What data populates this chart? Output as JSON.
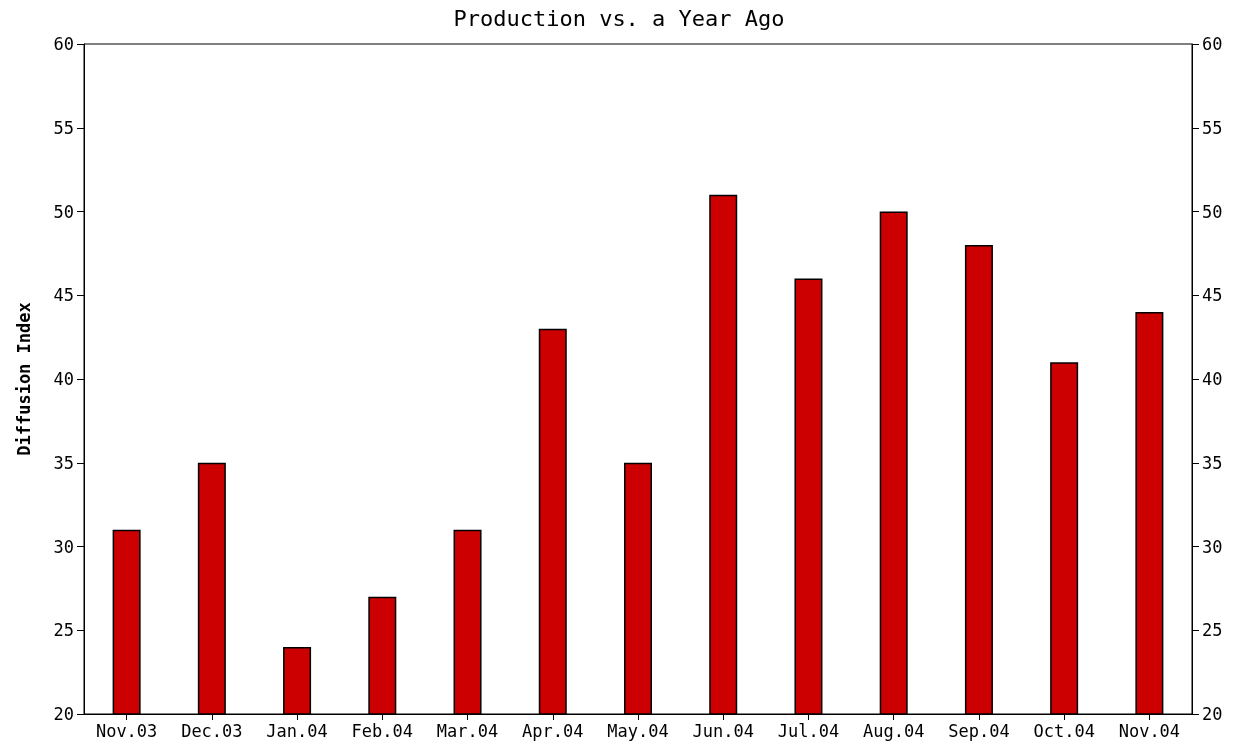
{
  "chart_data": {
    "type": "bar",
    "title": "Production vs. a Year Ago",
    "ylabel": "Diffusion Index",
    "categories": [
      "Nov.03",
      "Dec.03",
      "Jan.04",
      "Feb.04",
      "Mar.04",
      "Apr.04",
      "May.04",
      "Jun.04",
      "Jul.04",
      "Aug.04",
      "Sep.04",
      "Oct.04",
      "Nov.04"
    ],
    "values": [
      31,
      35,
      24,
      27,
      31,
      43,
      35,
      51,
      46,
      50,
      48,
      41,
      44
    ],
    "color": "#cc0000",
    "ylim": [
      20,
      60
    ],
    "yticks": [
      20,
      25,
      30,
      35,
      40,
      45,
      50,
      55,
      60
    ],
    "y2lim": [
      20,
      60
    ],
    "y2ticks": [
      20,
      25,
      30,
      35,
      40,
      45,
      50,
      55,
      60
    ],
    "grid": false
  }
}
